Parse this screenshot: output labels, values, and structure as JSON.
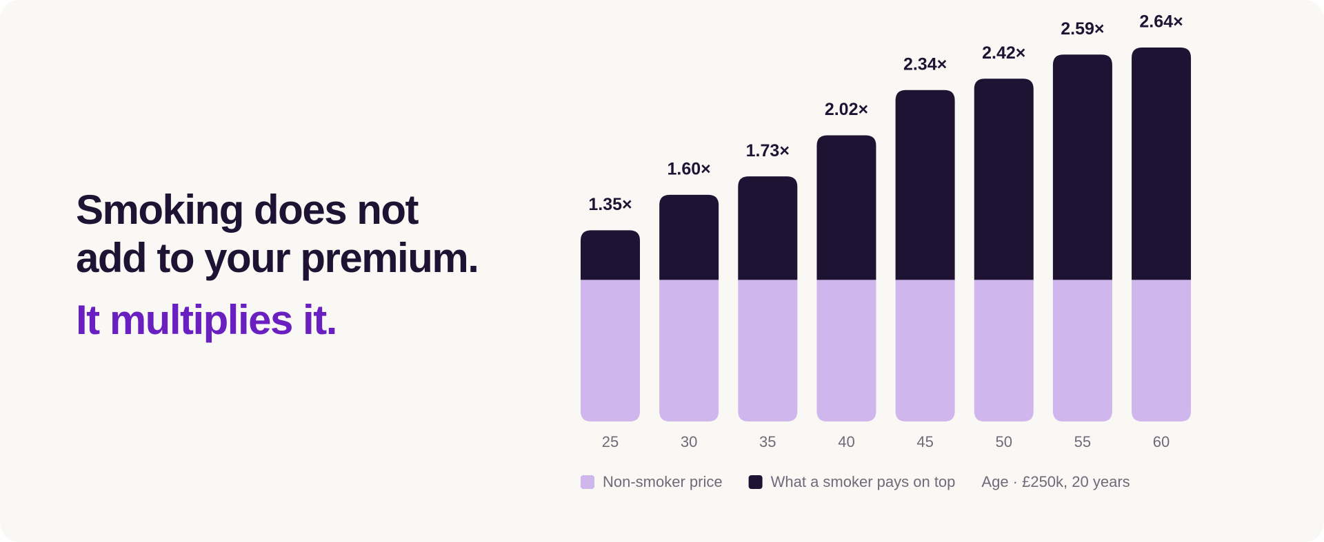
{
  "header": {
    "title_lines": [
      "Smoking does not",
      "add to your premium."
    ],
    "emphasis": "It multiplies it."
  },
  "chart_data": {
    "type": "stacked-bar",
    "categories": [
      "25",
      "30",
      "35",
      "40",
      "45",
      "50",
      "55",
      "60"
    ],
    "series": [
      {
        "name": "Non-smoker price",
        "color": "#cfb6ec",
        "values": [
          1,
          1,
          1,
          1,
          1,
          1,
          1,
          1
        ]
      },
      {
        "name": "What a smoker pays on top",
        "color": "#1e1333",
        "values": [
          0.35,
          0.6,
          0.73,
          1.02,
          1.34,
          1.42,
          1.59,
          1.64
        ]
      }
    ],
    "totals": {
      "values": [
        1.35,
        1.6,
        1.73,
        2.02,
        2.34,
        2.42,
        2.59,
        2.64
      ],
      "value_labels": [
        "1.35×",
        "1.60×",
        "1.73×",
        "2.02×",
        "2.34×",
        "2.42×",
        "2.59×",
        "2.64×"
      ]
    },
    "note": "Age · £250k, 20 years"
  }
}
